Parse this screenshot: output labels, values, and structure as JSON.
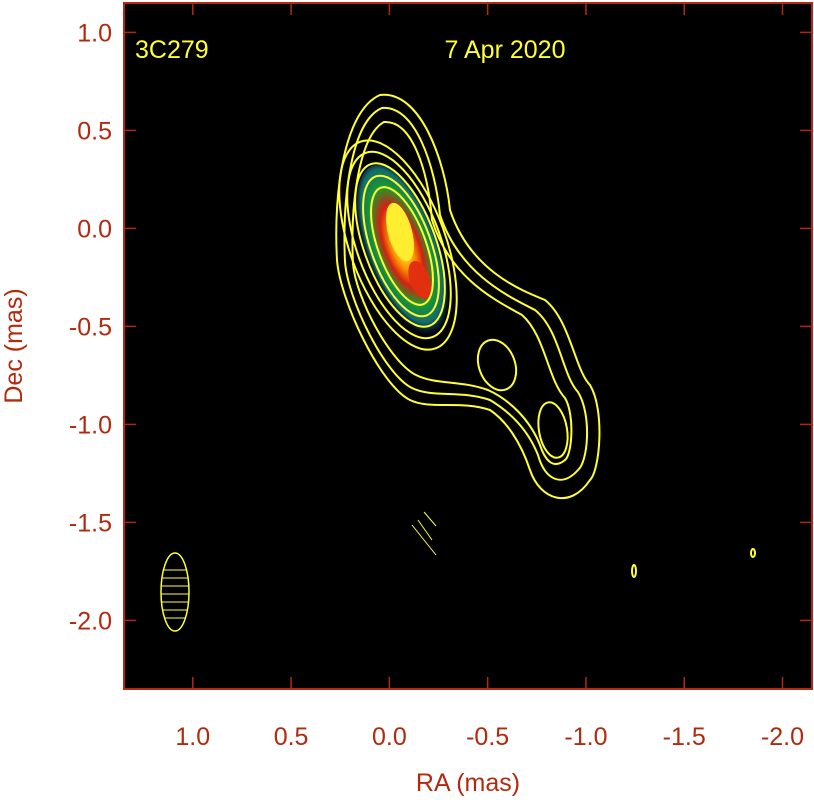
{
  "chart_data": {
    "type": "image",
    "annotations": [
      "3C279",
      "7 Apr 2020"
    ],
    "xlabel": "RA (mas)",
    "ylabel": "Dec (mas)",
    "xlim": [
      1.35,
      -2.15
    ],
    "xticks": [
      {
        "value": 1,
        "label": "1.0"
      },
      0.5,
      {
        "value": 0,
        "label": "0.0"
      },
      -0.5,
      {
        "value": -1,
        "label": "-1.0"
      },
      -1.5,
      {
        "value": -2,
        "label": "-2.0"
      }
    ],
    "ylim": [
      -2.35,
      1.15
    ],
    "yticks": [
      {
        "value": 1,
        "label": "1.0"
      },
      0.5,
      {
        "value": 0,
        "label": "0.0"
      },
      -0.5,
      {
        "value": -1,
        "label": "-1.0"
      },
      -1.5,
      {
        "value": -2,
        "label": "-2.0"
      }
    ],
    "frame_color": "#b22a0e",
    "annotation_color": "#ffff33"
  }
}
